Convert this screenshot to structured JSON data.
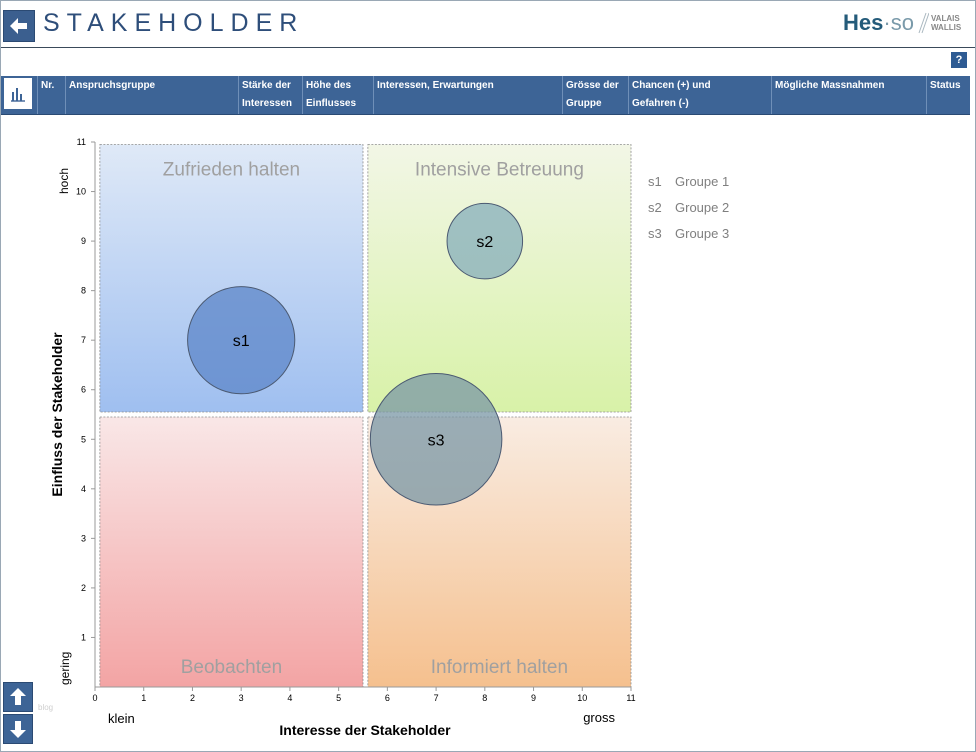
{
  "header": {
    "title": "STAKEHOLDER",
    "logo": {
      "main": "Hes",
      "dot": "·",
      "so": "so",
      "line1": "VALAIS",
      "line2": "WALLIS"
    },
    "help_label": "?"
  },
  "table": {
    "columns": [
      {
        "line1": "Nr.",
        "line2": ""
      },
      {
        "line1": "Anspruchsgruppe",
        "line2": ""
      },
      {
        "line1": "Stärke der",
        "line2": "Interessen"
      },
      {
        "line1": "Höhe des",
        "line2": "Einflusses"
      },
      {
        "line1": "Interessen, Erwartungen",
        "line2": ""
      },
      {
        "line1": "Grösse der",
        "line2": "Gruppe"
      },
      {
        "line1": "Chancen (+) und",
        "line2": "Gefahren (-)"
      },
      {
        "line1": "Mögliche Massnahmen",
        "line2": ""
      },
      {
        "line1": "Status",
        "line2": ""
      }
    ]
  },
  "chart_data": {
    "type": "scatter",
    "xlabel": "Interesse der Stakeholder",
    "ylabel": "Einfluss der Stakeholder",
    "xlim": [
      0,
      11
    ],
    "ylim": [
      0,
      11
    ],
    "x_ticks": [
      0,
      1,
      2,
      3,
      4,
      5,
      6,
      7,
      8,
      9,
      10,
      11
    ],
    "y_ticks": [
      1,
      2,
      3,
      4,
      5,
      6,
      7,
      8,
      9,
      10,
      11
    ],
    "x_low_label": "klein",
    "x_high_label": "gross",
    "y_low_label": "gering",
    "y_high_label": "hoch",
    "quadrants": [
      {
        "label": "Zufrieden halten",
        "x": [
          0.1,
          5.5
        ],
        "y": [
          5.55,
          10.95
        ],
        "colors": [
          "#dfe9f7",
          "#9fbff0"
        ]
      },
      {
        "label": "Intensive Betreuung",
        "x": [
          5.6,
          11
        ],
        "y": [
          5.55,
          10.95
        ],
        "colors": [
          "#f2f6e6",
          "#d8f2a8"
        ]
      },
      {
        "label": "Beobachten",
        "x": [
          0.1,
          5.5
        ],
        "y": [
          0,
          5.45
        ],
        "colors": [
          "#f9e7e7",
          "#f3a4a4"
        ]
      },
      {
        "label": "Informiert halten",
        "x": [
          5.6,
          11
        ],
        "y": [
          0,
          5.45
        ],
        "colors": [
          "#f9ece2",
          "#f5c08e"
        ]
      }
    ],
    "points": [
      {
        "id": "s1",
        "name": "Groupe 1",
        "x": 3,
        "y": 7,
        "size": 2.2,
        "color": "#5c86c8"
      },
      {
        "id": "s2",
        "name": "Groupe 2",
        "x": 8,
        "y": 9,
        "size": 1.55,
        "color": "#86aebb"
      },
      {
        "id": "s3",
        "name": "Groupe 3",
        "x": 7,
        "y": 5,
        "size": 2.7,
        "color": "#7a97a6"
      }
    ],
    "legend_position": "right"
  },
  "icons": {
    "back": "arrow-left-icon",
    "chart_toggle": "bar-chart-icon",
    "up": "arrow-up-icon",
    "down": "arrow-down-icon"
  },
  "footer": {
    "blog": "blog"
  }
}
